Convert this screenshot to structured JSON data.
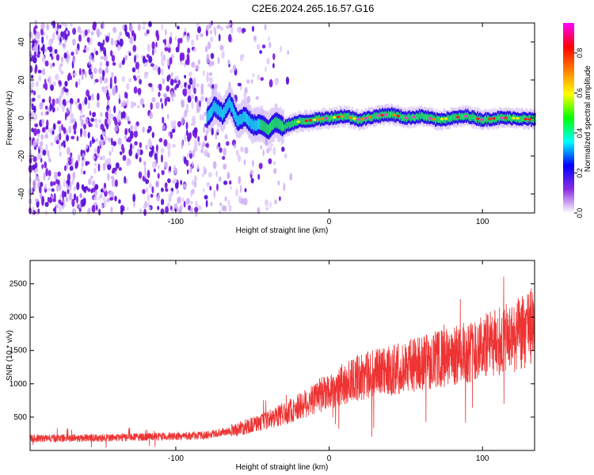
{
  "title": "C2E6.2024.265.16.57.G16",
  "chart_data": [
    {
      "type": "heatmap",
      "name": "spectrogram",
      "xlabel": "Height of straight line (km)",
      "ylabel": "Frequency (Hz)",
      "xlim": [
        -195,
        134
      ],
      "ylim": [
        -50,
        50
      ],
      "xticks": [
        -100,
        0,
        100
      ],
      "yticks": [
        -40,
        -20,
        0,
        20,
        40
      ],
      "colorbar": {
        "label": "Normalized spectral amplitude",
        "range": [
          0,
          0.95
        ],
        "ticks": [
          "0.0",
          "0.2",
          "0.4",
          "0.6",
          "0.8"
        ],
        "tick_values": [
          0,
          0.2,
          0.4,
          0.6,
          0.8
        ],
        "colors": [
          "#ffffff",
          "#8a2be2",
          "#0000ff",
          "#00ffff",
          "#00ff00",
          "#ffff00",
          "#ff8000",
          "#ff0000",
          "#ff00ff"
        ]
      },
      "ridge": {
        "x": [
          -80,
          -75,
          -70,
          -65,
          -60,
          -55,
          -50,
          -45,
          -40,
          -35,
          -30,
          -25,
          -20,
          -10,
          0,
          10,
          20,
          30,
          40,
          50,
          60,
          70,
          80,
          90,
          100,
          110,
          120,
          134
        ],
        "freq": [
          0,
          6,
          2,
          8,
          -2,
          1,
          -4,
          -3,
          -6,
          -2,
          -5,
          -3,
          -2,
          -1,
          0,
          1,
          -1,
          1,
          2,
          0,
          1,
          -1,
          0,
          1,
          -1,
          0,
          0,
          -1
        ]
      }
    },
    {
      "type": "line",
      "name": "snr",
      "xlabel": "Height of straight line (km)",
      "ylabel": "SNR (10 * v/v)",
      "xlim": [
        -195,
        134
      ],
      "ylim": [
        0,
        2850
      ],
      "xticks": [
        -100,
        0,
        100
      ],
      "yticks": [
        500,
        1000,
        1500,
        2000,
        2500
      ],
      "color": "#ee3333",
      "trend": {
        "x": [
          -195,
          -150,
          -100,
          -80,
          -60,
          -40,
          -20,
          0,
          20,
          40,
          60,
          80,
          100,
          120,
          134
        ],
        "y": [
          180,
          190,
          210,
          230,
          320,
          450,
          650,
          900,
          1100,
          1200,
          1320,
          1400,
          1550,
          1700,
          1850
        ]
      }
    }
  ]
}
